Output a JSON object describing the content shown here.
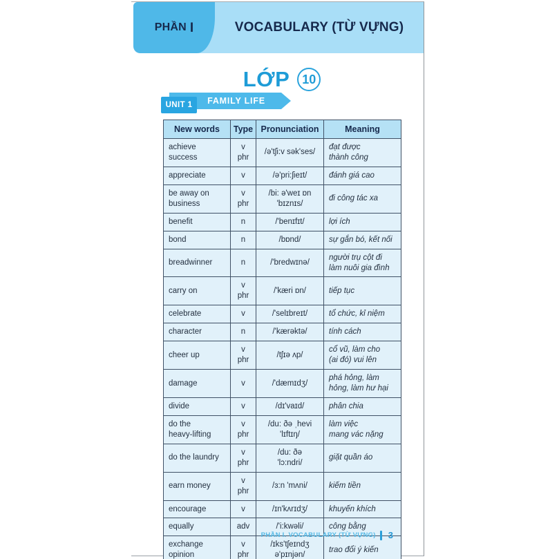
{
  "header": {
    "part_label": "PHẦN",
    "part_number": "I",
    "title": "VOCABULARY (TỪ VỰNG)"
  },
  "grade": {
    "label": "LỚP",
    "number": "10"
  },
  "unit": {
    "badge": "UNIT 1",
    "name": "FAMILY LIFE"
  },
  "table": {
    "columns": [
      "New words",
      "Type",
      "Pronunciation",
      "Meaning"
    ],
    "rows": [
      {
        "word": "achieve success",
        "type": "v phr",
        "pron": "/ə'tʃi:v sək'ses/",
        "meaning": "đạt được\nthành công"
      },
      {
        "word": "appreciate",
        "type": "v",
        "pron": "/ə'pri:ʃieɪt/",
        "meaning": "đánh giá cao"
      },
      {
        "word": "be away on\nbusiness",
        "type": "v phr",
        "pron": "/bi: ə'weɪ ɒn\n'bɪznɪs/",
        "meaning": "đi công tác xa"
      },
      {
        "word": "benefit",
        "type": "n",
        "pron": "/'benɪfɪt/",
        "meaning": "lợi ích"
      },
      {
        "word": "bond",
        "type": "n",
        "pron": "/bɒnd/",
        "meaning": "sự gắn bó, kết nối"
      },
      {
        "word": "breadwinner",
        "type": "n",
        "pron": "/'bredwɪnə/",
        "meaning": "người trụ cột đi\nlàm nuôi gia đình"
      },
      {
        "word": "carry on",
        "type": "v phr",
        "pron": "/'kæri ɒn/",
        "meaning": "tiếp tục"
      },
      {
        "word": "celebrate",
        "type": "v",
        "pron": "/'selɪbreɪt/",
        "meaning": "tổ chức, kỉ niệm"
      },
      {
        "word": "character",
        "type": "n",
        "pron": "/'kærəktə/",
        "meaning": "tính cách"
      },
      {
        "word": "cheer up",
        "type": "v phr",
        "pron": "/tʃɪə ʌp/",
        "meaning": "cổ vũ, làm cho\n(ai đó) vui lên"
      },
      {
        "word": "damage",
        "type": "v",
        "pron": "/'dæmɪdʒ/",
        "meaning": "phá hỏng, làm\nhỏng, làm hư hại"
      },
      {
        "word": "divide",
        "type": "v",
        "pron": "/dɪ'vaɪd/",
        "meaning": "phân chia"
      },
      {
        "word": "do the\nheavy-lifting",
        "type": "v phr",
        "pron": "/du: ðə ˌhevi\n'lɪftɪŋ/",
        "meaning": "làm việc\nmang vác nặng"
      },
      {
        "word": "do the laundry",
        "type": "v phr",
        "pron": "/du: ðə\n'lɔ:ndri/",
        "meaning": "giặt quần áo"
      },
      {
        "word": "earn money",
        "type": "v phr",
        "pron": "/ɜ:n 'mʌni/",
        "meaning": "kiếm tiền"
      },
      {
        "word": "encourage",
        "type": "v",
        "pron": "/ɪn'kʌrɪdʒ/",
        "meaning": "khuyến khích"
      },
      {
        "word": "equally",
        "type": "adv",
        "pron": "/'i:kwəli/",
        "meaning": "công bằng"
      },
      {
        "word": "exchange\nopinion",
        "type": "v phr",
        "pron": "/ɪks'tʃeɪndʒ\nə'pɪnjən/",
        "meaning": "trao đổi ý kiến"
      }
    ]
  },
  "footer": {
    "label": "PHẦN I. VOCABULARY (TỪ VỰNG)",
    "page_number": "3"
  },
  "colors": {
    "accent_blue": "#29a5e1",
    "tab_blue": "#4fb8e8",
    "header_light_blue": "#a9def7",
    "table_header_bg": "#b5e1f5",
    "table_cell_bg": "#e1f1fa",
    "navy_text": "#16294c",
    "grade_blue": "#1e9cd7"
  }
}
